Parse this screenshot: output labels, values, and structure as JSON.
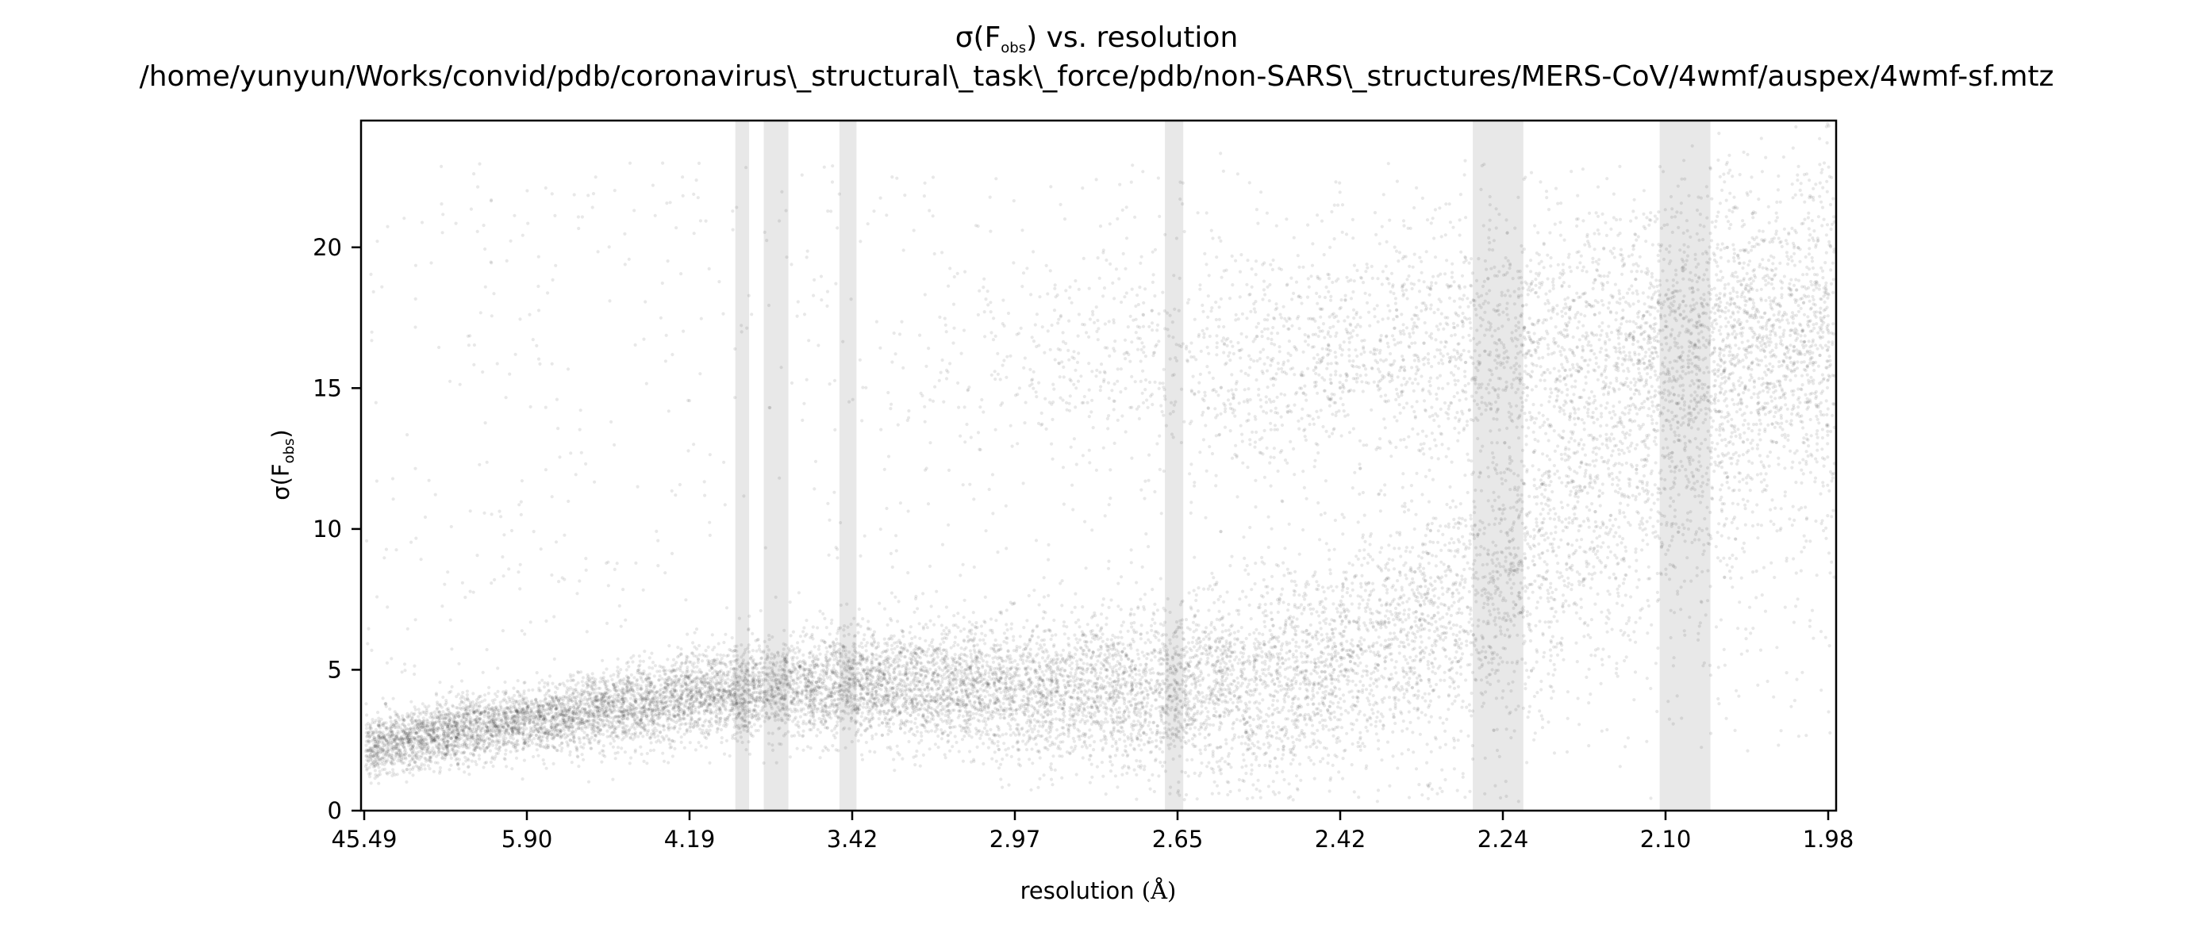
{
  "chart_data": {
    "type": "scatter",
    "title": {
      "line1_prefix": "σ(F",
      "line1_sub": "obs",
      "line1_suffix": ") vs. resolution",
      "line2": "/home/yunyun/Works/convid/pdb/coronavirus\\_structural\\_task\\_force/pdb/non-SARS\\_structures/MERS-CoV/4wmf/auspex/4wmf-sf.mtz"
    },
    "xlabel": {
      "main": "resolution ",
      "unit": "(Å)"
    },
    "ylabel": {
      "prefix": "σ(F",
      "sub": "obs",
      "suffix": ")"
    },
    "x_scale": "reciprocal-squared",
    "x_tick_labels": [
      "45.49",
      "5.90",
      "4.19",
      "3.42",
      "2.97",
      "2.65",
      "2.42",
      "2.24",
      "2.10",
      "1.98"
    ],
    "y_ticks": [
      0,
      5,
      10,
      15,
      20
    ],
    "ylim": [
      0,
      24.5
    ],
    "xlim_resolution": [
      45.49,
      1.98
    ],
    "grid": false,
    "point_color": "#000000",
    "band_color": "#e8e8e8",
    "ice_ring_bands_resolution": [
      [
        3.92,
        3.85
      ],
      [
        3.78,
        3.67
      ],
      [
        3.47,
        3.41
      ],
      [
        2.68,
        2.65
      ],
      [
        2.28,
        2.23
      ],
      [
        2.11,
        2.07
      ]
    ],
    "trend_median": [
      {
        "x": 45.49,
        "y": 2.1
      },
      {
        "x": 8.0,
        "y": 2.6
      },
      {
        "x": 5.9,
        "y": 3.0
      },
      {
        "x": 4.5,
        "y": 3.6
      },
      {
        "x": 3.9,
        "y": 4.0
      },
      {
        "x": 3.42,
        "y": 4.3
      },
      {
        "x": 3.1,
        "y": 4.1
      },
      {
        "x": 2.85,
        "y": 3.9
      },
      {
        "x": 2.65,
        "y": 3.9
      },
      {
        "x": 2.5,
        "y": 4.2
      },
      {
        "x": 2.35,
        "y": 5.5
      },
      {
        "x": 2.24,
        "y": 7.5
      },
      {
        "x": 2.15,
        "y": 10.5
      },
      {
        "x": 2.05,
        "y": 13.5
      },
      {
        "x": 1.98,
        "y": 15.5
      }
    ],
    "upper_cluster": [
      {
        "x": 3.9,
        "y": 14.5
      },
      {
        "x": 2.97,
        "y": 16.0
      },
      {
        "x": 2.65,
        "y": 16.0
      },
      {
        "x": 2.42,
        "y": 16.3
      },
      {
        "x": 2.24,
        "y": 16.8
      },
      {
        "x": 2.1,
        "y": 17.0
      },
      {
        "x": 1.98,
        "y": 16.5
      }
    ]
  }
}
